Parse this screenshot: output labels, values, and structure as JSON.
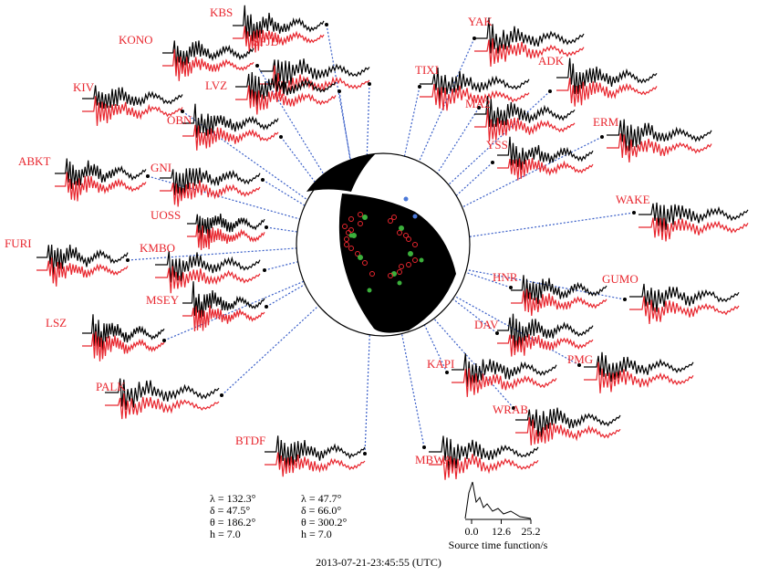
{
  "stations": [
    "KBS",
    "KONO",
    "SFJD",
    "KIV",
    "LVZ",
    "OBN",
    "ABKT",
    "GNI",
    "UOSS",
    "FURI",
    "KMBO",
    "MSEY",
    "LSZ",
    "PALK",
    "BTDF",
    "YAK",
    "TIXI",
    "ADK",
    "MA2",
    "ERM",
    "YSS",
    "WAKE",
    "HNR",
    "GUMO",
    "DAV",
    "PMG",
    "KAPI",
    "WRAB",
    "MBWA"
  ],
  "parameters": {
    "plane1": [
      "λ = 132.3°",
      "δ = 47.5°",
      "θ = 186.2°",
      "h = 7.0"
    ],
    "plane2": [
      "λ = 47.7°",
      "δ = 66.0°",
      "θ = 300.2°",
      "h = 7.0"
    ]
  },
  "stf": {
    "xticks": [
      {
        "value": 0,
        "label": "0.0"
      },
      {
        "value": 12.6,
        "label": "12.6"
      },
      {
        "value": 25.2,
        "label": "25.2"
      }
    ],
    "xlabel": "Source time function/s"
  },
  "timestamp": "2013-07-21-23:45:55 (UTC)"
}
